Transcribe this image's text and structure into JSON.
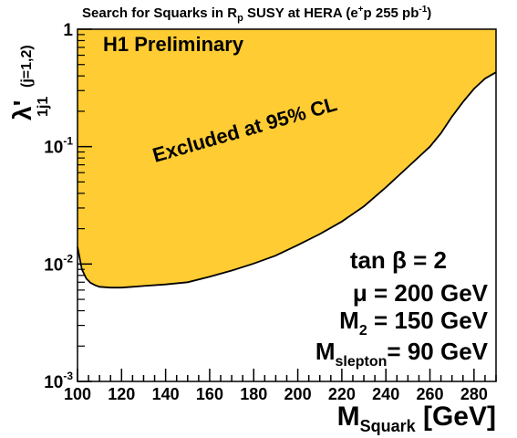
{
  "chart_data": {
    "type": "area",
    "title": "Search for Squarks in R",
    "title_sub": "p",
    "title_rest": " SUSY at HERA (e",
    "title_sup": "+",
    "title_end": "p 255 pb",
    "title_sup2": "-1",
    "title_close": ")",
    "label_prelim": "H1 Preliminary",
    "label_excluded": "Excluded at 95% CL",
    "xlabel_main": "M",
    "xlabel_sub": "Squark",
    "xlabel_unit": " [GeV]",
    "ylabel_main": "λ'",
    "ylabel_sub": "1j1",
    "ylabel_extra": "(j=1,2)",
    "params": [
      {
        "pre": "tan β = 2",
        "sub": "",
        "post": ""
      },
      {
        "pre": "μ  = 200 GeV",
        "sub": "",
        "post": ""
      },
      {
        "pre": "M",
        "sub": "2",
        "post": " = 150 GeV"
      },
      {
        "pre": "M",
        "sub": "slepton",
        "post": "= 90 GeV"
      }
    ],
    "xlim": [
      100,
      290
    ],
    "ylim": [
      0.001,
      1
    ],
    "yscale": "log",
    "x_ticks": [
      "100",
      "120",
      "140",
      "160",
      "180",
      "200",
      "220",
      "240",
      "260",
      "280"
    ],
    "y_ticks": [
      {
        "base": "10",
        "exp": "-3"
      },
      {
        "base": "10",
        "exp": "-2"
      },
      {
        "base": "10",
        "exp": "-1"
      },
      {
        "base": "1",
        "exp": ""
      }
    ],
    "fill_color": "#ffcc33",
    "line_color": "#000000",
    "x": [
      100,
      102,
      104,
      106,
      108,
      110,
      115,
      120,
      125,
      130,
      140,
      150,
      160,
      170,
      180,
      190,
      200,
      210,
      220,
      230,
      240,
      250,
      260,
      265,
      270,
      275,
      280,
      285,
      290
    ],
    "y": [
      0.014,
      0.009,
      0.0075,
      0.0069,
      0.0066,
      0.0064,
      0.0063,
      0.0063,
      0.0064,
      0.0065,
      0.0067,
      0.007,
      0.0078,
      0.0088,
      0.0101,
      0.0118,
      0.0145,
      0.018,
      0.023,
      0.031,
      0.045,
      0.067,
      0.1,
      0.13,
      0.18,
      0.24,
      0.31,
      0.38,
      0.43
    ]
  }
}
